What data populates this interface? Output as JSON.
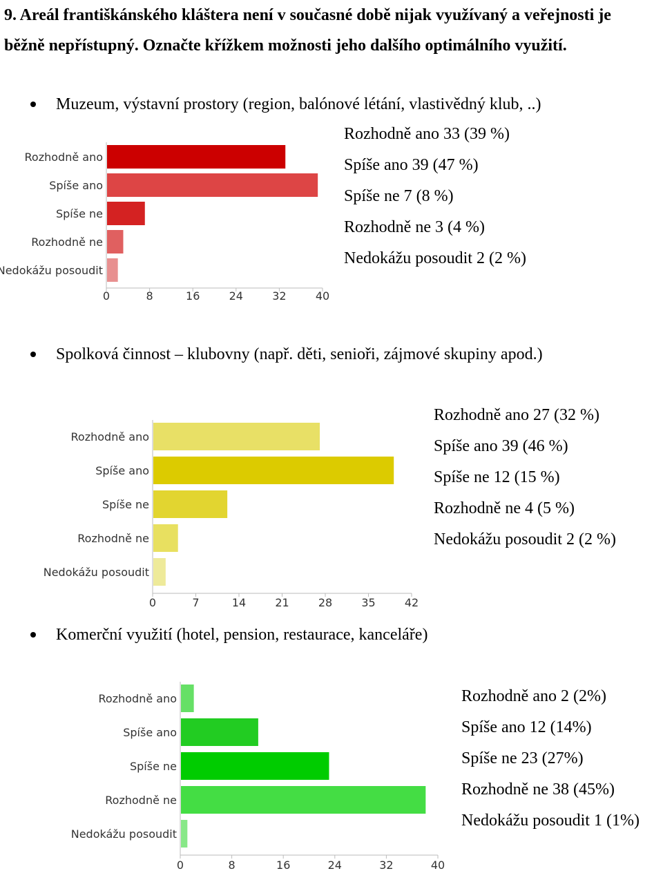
{
  "question": {
    "line1": "9. Areál františkánského kláštera není v současné době nijak využívaný a veřejnosti je",
    "line2": "běžně nepřístupný. Označte křížkem možnosti jeho dalšího optimálního využití."
  },
  "sections": [
    {
      "heading": "Muzeum, výstavní prostory (region, balónové létání, vlastivědný klub, ..)",
      "legend": [
        "Rozhodně ano 33 (39 %)",
        "Spíše ano 39 (47 %)",
        "Spíše ne 7 (8 %)",
        "Rozhodně ne 3 (4 %)",
        "Nedokážu posoudit 2 (2 %)"
      ]
    },
    {
      "heading": "Spolková činnost – klubovny (např. děti, senioři, zájmové skupiny apod.)",
      "legend": [
        "Rozhodně ano 27 (32 %)",
        "Spíše ano 39 (46 %)",
        "Spíše ne 12 (15 %)",
        "Rozhodně ne 4 (5 %)",
        "Nedokážu posoudit 2 (2 %)"
      ]
    },
    {
      "heading": "Komerční využití (hotel, pension, restaurace, kanceláře)",
      "legend": [
        "Rozhodně ano 2 (2%)",
        "Spíše ano 12 (14%)",
        "Spíše ne 23 (27%)",
        "Rozhodně ne 38 (45%)",
        "Nedokážu posoudit 1 (1%)"
      ]
    }
  ],
  "chart_data": [
    {
      "type": "bar",
      "orientation": "horizontal",
      "categories": [
        "Rozhodně ano",
        "Spíše ano",
        "Spíše ne",
        "Rozhodně ne",
        "Nedokážu posoudit"
      ],
      "values": [
        33,
        39,
        7,
        3,
        2
      ],
      "xlim": [
        0,
        40
      ],
      "xticks": [
        0,
        8,
        16,
        24,
        32,
        40
      ],
      "colors": [
        "#cc0000",
        "#dd4545",
        "#d42222",
        "#e06060",
        "#e89090"
      ]
    },
    {
      "type": "bar",
      "orientation": "horizontal",
      "categories": [
        "Rozhodně ano",
        "Spíše ano",
        "Spíše ne",
        "Rozhodně ne",
        "Nedokážu posoudit"
      ],
      "values": [
        27,
        39,
        12,
        4,
        2
      ],
      "xlim": [
        0,
        42
      ],
      "xticks": [
        0,
        7,
        14,
        21,
        28,
        35,
        42
      ],
      "colors": [
        "#e8e066",
        "#dccb00",
        "#e2d530",
        "#e8e060",
        "#eeea9a"
      ]
    },
    {
      "type": "bar",
      "orientation": "horizontal",
      "categories": [
        "Rozhodně ano",
        "Spíše ano",
        "Spíše ne",
        "Rozhodně ne",
        "Nedokážu posoudit"
      ],
      "values": [
        2,
        12,
        23,
        38,
        1
      ],
      "xlim": [
        0,
        40
      ],
      "xticks": [
        0,
        8,
        16,
        24,
        32,
        40
      ],
      "colors": [
        "#66e066",
        "#22cc22",
        "#00cc00",
        "#44dd44",
        "#88e888"
      ]
    }
  ]
}
